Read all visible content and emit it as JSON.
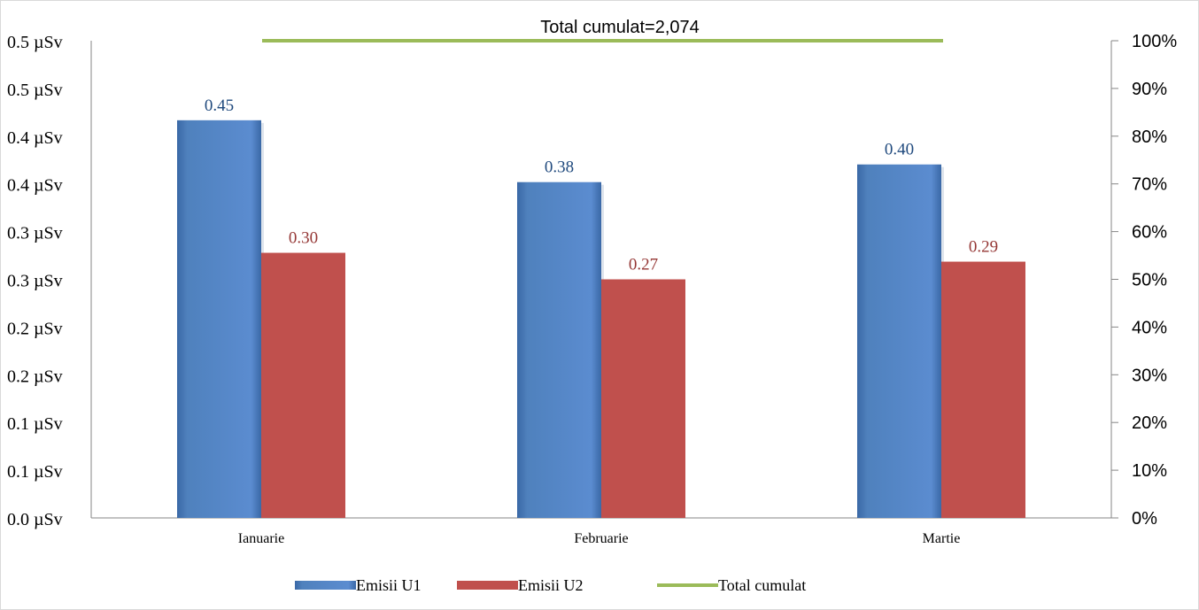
{
  "chart_data": {
    "type": "bar",
    "categories": [
      "Ianuarie",
      "Februarie",
      "Martie"
    ],
    "series": [
      {
        "name": "Emisii U1",
        "values": [
          0.45,
          0.38,
          0.4
        ],
        "labels": [
          "0.45",
          "0.38",
          "0.40"
        ],
        "color": "#4f81bd",
        "label_color": "#1f497d"
      },
      {
        "name": "Emisii U2",
        "values": [
          0.3,
          0.27,
          0.29
        ],
        "labels": [
          "0.30",
          "0.27",
          "0.29"
        ],
        "color": "#c0504d",
        "label_color": "#953735"
      }
    ],
    "line_series": {
      "name": "Total cumulat",
      "value_percent": 100,
      "label": "Total cumulat=2,074",
      "color": "#9bbb59"
    },
    "y_left": {
      "ticks": [
        "0.0 µSv",
        "0.1 µSv",
        "0.1 µSv",
        "0.2 µSv",
        "0.2 µSv",
        "0.3 µSv",
        "0.3 µSv",
        "0.4 µSv",
        "0.4 µSv",
        "0.5 µSv",
        "0.5 µSv"
      ]
    },
    "y_right": {
      "ticks": [
        "0%",
        "10%",
        "20%",
        "30%",
        "40%",
        "50%",
        "60%",
        "70%",
        "80%",
        "90%",
        "100%"
      ],
      "ylim": [
        0,
        100
      ]
    },
    "legend": {
      "position": "bottom",
      "entries": [
        "Emisii U1",
        "Emisii U2",
        "Total cumulat"
      ]
    },
    "grid": false
  }
}
